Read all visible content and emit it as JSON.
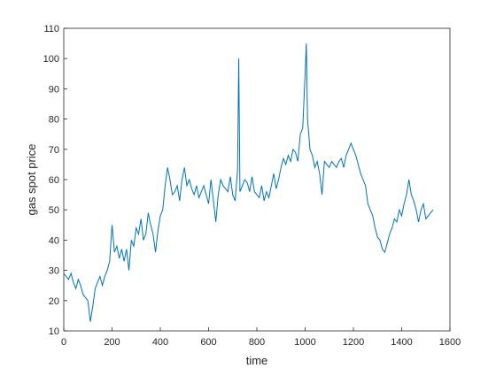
{
  "chart_data": {
    "type": "line",
    "x_label": "time",
    "y_label": "gas spot price",
    "x": [
      0,
      10,
      20,
      30,
      40,
      50,
      60,
      70,
      80,
      90,
      100,
      110,
      120,
      130,
      140,
      150,
      160,
      170,
      180,
      190,
      200,
      210,
      220,
      230,
      240,
      250,
      260,
      270,
      280,
      290,
      300,
      310,
      320,
      330,
      340,
      350,
      360,
      370,
      380,
      390,
      400,
      410,
      420,
      430,
      440,
      450,
      460,
      470,
      480,
      490,
      500,
      510,
      520,
      530,
      540,
      550,
      560,
      570,
      580,
      590,
      600,
      610,
      620,
      630,
      640,
      650,
      660,
      670,
      680,
      690,
      700,
      710,
      720,
      725,
      730,
      740,
      750,
      760,
      770,
      780,
      790,
      800,
      810,
      820,
      830,
      840,
      850,
      860,
      870,
      880,
      890,
      900,
      910,
      920,
      930,
      940,
      950,
      960,
      970,
      980,
      990,
      1000,
      1005,
      1010,
      1020,
      1030,
      1040,
      1050,
      1060,
      1070,
      1080,
      1090,
      1100,
      1110,
      1120,
      1130,
      1140,
      1150,
      1160,
      1170,
      1180,
      1190,
      1200,
      1210,
      1220,
      1230,
      1240,
      1250,
      1260,
      1270,
      1280,
      1290,
      1300,
      1310,
      1320,
      1330,
      1340,
      1350,
      1360,
      1370,
      1380,
      1390,
      1400,
      1410,
      1420,
      1430,
      1440,
      1450,
      1460,
      1470,
      1480,
      1490,
      1500,
      1510,
      1520,
      1530
    ],
    "series": [
      {
        "name": "gas spot price",
        "color": "#0072bd",
        "values": [
          29,
          28,
          27,
          29,
          26,
          24,
          27,
          25,
          22,
          21,
          20,
          13,
          18,
          24,
          26,
          28,
          25,
          28,
          30,
          33,
          45,
          36,
          38,
          34,
          37,
          33,
          37,
          30,
          40,
          38,
          44,
          42,
          47,
          40,
          42,
          49,
          45,
          42,
          36,
          43,
          48,
          50,
          58,
          64,
          60,
          55,
          56,
          58,
          53,
          60,
          64,
          58,
          60,
          57,
          55,
          58,
          54,
          56,
          58,
          55,
          52,
          60,
          53,
          46,
          55,
          60,
          58,
          57,
          56,
          61,
          55,
          53,
          63,
          100,
          56,
          58,
          60,
          59,
          56,
          61,
          56,
          55,
          54,
          58,
          53,
          56,
          54,
          58,
          62,
          57,
          60,
          64,
          67,
          65,
          68,
          66,
          70,
          69,
          66,
          75,
          77,
          95,
          105,
          80,
          70,
          68,
          64,
          66,
          62,
          55,
          66,
          65,
          64,
          66,
          65,
          64,
          66,
          67,
          64,
          68,
          70,
          72,
          70,
          68,
          65,
          62,
          60,
          58,
          52,
          50,
          48,
          44,
          41,
          40,
          37,
          36,
          39,
          42,
          44,
          47,
          46,
          50,
          48,
          52,
          55,
          60,
          55,
          53,
          50,
          46,
          50,
          52,
          47,
          48,
          49,
          50
        ]
      }
    ],
    "xlim": [
      0,
      1600
    ],
    "xticks": [
      0,
      200,
      400,
      600,
      800,
      1000,
      1200,
      1400,
      1600
    ],
    "ylim": [
      10,
      110
    ],
    "yticks": [
      10,
      20,
      30,
      40,
      50,
      60,
      70,
      80,
      90,
      100,
      110
    ]
  }
}
